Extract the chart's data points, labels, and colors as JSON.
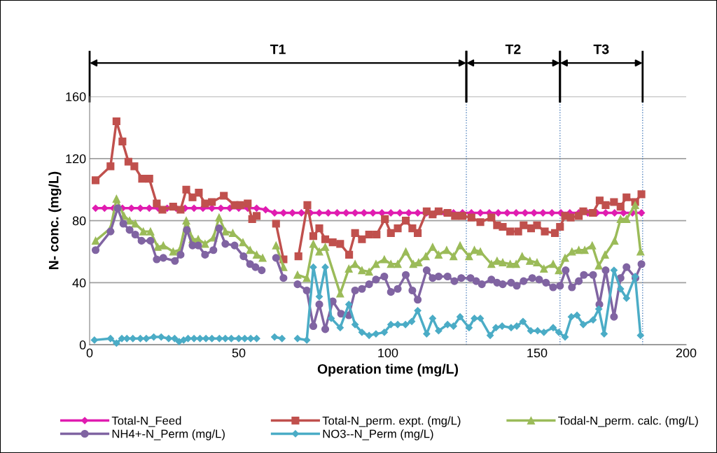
{
  "chart_data": {
    "type": "line",
    "xlabel": "Operation time (mg/L)",
    "ylabel": "N- conc. (mg/L)",
    "xlim": [
      0,
      200
    ],
    "xticks": [
      0,
      50,
      100,
      150,
      200
    ],
    "ylim": [
      0,
      160
    ],
    "yticks": [
      0,
      40,
      80,
      120,
      160
    ],
    "grid": "y",
    "legend": "bottom",
    "line_style": "solid",
    "series": [
      {
        "name": "Total-N_Feed",
        "color": "#e01cb0",
        "marker": "diamond",
        "x": [
          2,
          5,
          8,
          11,
          14,
          17,
          20,
          23,
          26,
          29,
          32,
          35,
          38,
          41,
          44,
          47,
          50,
          53,
          56,
          59,
          62,
          65,
          68,
          71,
          74,
          77,
          80,
          83,
          86,
          89,
          92,
          95,
          98,
          101,
          104,
          107,
          110,
          113,
          116,
          119,
          122,
          125,
          128,
          131,
          134,
          137,
          140,
          143,
          146,
          149,
          152,
          155,
          158,
          161,
          164,
          167,
          170,
          173,
          176,
          179,
          182,
          185
        ],
        "values": [
          88,
          88,
          88,
          88,
          88,
          88,
          88,
          88,
          88,
          88,
          88,
          88,
          88,
          88,
          88,
          88,
          88,
          88,
          88,
          87,
          85,
          85,
          85,
          85,
          85,
          85,
          85,
          85,
          85,
          85,
          85,
          85,
          85,
          85,
          85,
          85,
          85,
          85,
          85,
          85,
          85,
          85,
          85,
          85,
          85,
          85,
          85,
          85,
          85,
          85,
          85,
          85,
          85,
          85,
          85,
          85,
          85,
          85,
          85,
          85,
          85,
          85
        ]
      },
      {
        "name": "Total-N_perm. expt. (mg/L)",
        "color": "#c0504d",
        "marker": "square",
        "x": [
          2,
          7,
          9,
          11,
          13,
          15,
          17.6,
          20,
          22.5,
          24.4,
          28,
          30.5,
          32.4,
          34.5,
          36.6,
          38.7,
          41,
          45,
          48.6,
          50.5,
          53,
          54.5,
          56,
          60,
          62.5,
          65,
          67,
          70,
          73,
          75,
          77,
          79,
          81.5,
          84,
          87,
          89,
          91.3,
          93.7,
          96.2,
          99,
          101,
          103.3,
          106,
          108.2,
          110,
          113,
          115,
          117,
          120,
          122.5,
          125,
          128,
          131,
          134.7,
          136.6,
          138.5,
          141,
          143.7,
          145.5,
          148,
          150,
          152.6,
          156,
          157.7,
          159.4,
          161.3,
          164,
          165.5,
          168.7,
          171,
          173,
          175.8,
          178,
          180,
          182.9,
          185
        ],
        "values": [
          106,
          115,
          144,
          131,
          118,
          115,
          107,
          107,
          91,
          87,
          89,
          87,
          100,
          95,
          98,
          91,
          92,
          96,
          90,
          90,
          91,
          81,
          83,
          null,
          78,
          55,
          null,
          57,
          90,
          70,
          75,
          68,
          66,
          65,
          58,
          72,
          68,
          71,
          71,
          81,
          72,
          75,
          80,
          75,
          72,
          86,
          84,
          86,
          85,
          83,
          83,
          82,
          79,
          82,
          77,
          76,
          73,
          73,
          77,
          75,
          77,
          73,
          72,
          76,
          83,
          82,
          83,
          86,
          85,
          93,
          90,
          92,
          89,
          95,
          92,
          97
        ]
      },
      {
        "name": "Todal-N_perm. calc. (mg/L)",
        "color": "#9bbb59",
        "marker": "triangle",
        "x": [
          2,
          7,
          9,
          11.5,
          13.4,
          15.3,
          18,
          20.4,
          22.8,
          24.7,
          28,
          30.2,
          32.4,
          34.5,
          36.4,
          38.7,
          41.5,
          43.4,
          45.5,
          48,
          51.4,
          53.8,
          56,
          58,
          60,
          62.5,
          65,
          67,
          69.7,
          72.8,
          75,
          77,
          79,
          84,
          86.9,
          89,
          91.3,
          93.7,
          96,
          98.8,
          101,
          103.3,
          106,
          108.5,
          110.3,
          112.7,
          115,
          117,
          119.7,
          122,
          124.2,
          127.2,
          129,
          131,
          134.7,
          136.6,
          138.5,
          141,
          143,
          145,
          147.6,
          150,
          152.3,
          155.4,
          157.3,
          159.4,
          161.7,
          164,
          166,
          168.5,
          170.7,
          172.8,
          176,
          178,
          180,
          182.9,
          184.7
        ],
        "values": [
          67,
          75,
          94,
          83,
          80,
          78,
          73,
          73,
          63,
          64,
          60,
          61,
          80,
          68,
          68,
          65,
          69,
          82,
          73,
          72,
          66,
          61,
          58,
          56,
          null,
          64,
          50,
          null,
          45,
          43,
          65,
          60,
          63,
          33,
          49,
          52,
          48,
          47,
          52,
          55,
          52,
          52,
          60,
          52,
          53,
          57,
          63,
          58,
          61,
          57,
          64,
          57,
          61,
          60,
          52,
          54,
          53,
          52,
          52,
          57,
          54,
          53,
          49,
          52,
          48,
          56,
          60,
          61,
          61,
          64,
          51,
          58,
          67,
          81,
          81,
          90,
          60
        ]
      },
      {
        "name": "NH4+-N_Perm (mg/L)",
        "color": "#8064a2",
        "marker": "circle",
        "x": [
          2,
          7,
          9.4,
          11.3,
          13.4,
          15.3,
          17.4,
          20.4,
          22.5,
          24.7,
          28.6,
          30.5,
          32.6,
          34.5,
          36.4,
          38.7,
          41.5,
          43.4,
          45.5,
          48.6,
          51.6,
          53.8,
          55.6,
          57.7,
          60,
          62.5,
          65,
          67,
          69.7,
          72.8,
          75,
          77,
          79,
          81.5,
          84.3,
          86.9,
          89,
          91.3,
          93.7,
          96,
          98.8,
          101,
          103.3,
          106,
          108.2,
          110,
          113,
          115,
          117,
          120,
          122.3,
          124.6,
          127.7,
          129.6,
          131.5,
          134.7,
          136.6,
          138.5,
          141.3,
          143.2,
          145.5,
          148.4,
          150.7,
          153,
          155.4,
          157.7,
          159.6,
          161.7,
          164,
          165.7,
          168.8,
          170.9,
          173,
          175.8,
          178,
          180,
          183,
          185
        ],
        "values": [
          61,
          73,
          88,
          78,
          74,
          71,
          67,
          67,
          55,
          56,
          54,
          58,
          74,
          64,
          64,
          58,
          61,
          75,
          65,
          64,
          57,
          52,
          50,
          48,
          null,
          56,
          43,
          null,
          39,
          35,
          12,
          26,
          10,
          28,
          20,
          19,
          35,
          36,
          39,
          42,
          44,
          34,
          36,
          45,
          35,
          29,
          48,
          43,
          44,
          44,
          41,
          43,
          43,
          41,
          39,
          42,
          40,
          39,
          40,
          38,
          41,
          43,
          42,
          40,
          37,
          38,
          48,
          37,
          41,
          45,
          45,
          26,
          48,
          18,
          43,
          50,
          43,
          52
        ]
      },
      {
        "name": "NO3--N_Perm (mg/L)",
        "color": "#4bacc6",
        "marker": "diamond",
        "x": [
          1.6,
          7,
          9,
          10.8,
          12.5,
          14.5,
          17,
          19,
          21.5,
          24,
          26.5,
          28.5,
          30,
          31.5,
          33,
          35,
          37,
          39,
          41,
          43.5,
          45.5,
          47.5,
          50,
          52,
          54,
          56,
          60,
          62,
          64.5,
          67,
          69.7,
          72.8,
          75,
          77,
          79,
          81,
          84,
          86.9,
          89,
          91.3,
          93.7,
          96,
          98.8,
          101,
          103.3,
          105.9,
          108,
          110,
          113,
          115,
          117,
          120,
          122,
          124.2,
          127.2,
          129,
          131,
          134.3,
          136.2,
          138.3,
          141.3,
          143.2,
          145.3,
          147.9,
          150.2,
          152.3,
          155.4,
          157.3,
          159.4,
          161.5,
          163.4,
          165.5,
          168.8,
          170.7,
          172.5,
          175.8,
          178,
          180,
          182.9,
          184.7
        ],
        "values": [
          3,
          4,
          1,
          4,
          4,
          4,
          4,
          4,
          5,
          5,
          4,
          4,
          2,
          3,
          4,
          4,
          4,
          4,
          4,
          4,
          4,
          4,
          4,
          4,
          4,
          4,
          null,
          5,
          4,
          null,
          4,
          3,
          50,
          31,
          50,
          17,
          11,
          26,
          13,
          8,
          6,
          7,
          8,
          13,
          13,
          13,
          15,
          22,
          7,
          17,
          9,
          13,
          12,
          18,
          11,
          17,
          17,
          6,
          11,
          12,
          11,
          12,
          15,
          9,
          9,
          8,
          11,
          8,
          5,
          18,
          19,
          13,
          16,
          23,
          7,
          48,
          36,
          30,
          44,
          6
        ]
      }
    ],
    "ref_lines": [
      {
        "axis": "x",
        "value": 126.3,
        "color": "#4f81bd",
        "line_style": "dotted"
      },
      {
        "axis": "x",
        "value": 157.7,
        "color": "#4f81bd",
        "line_style": "dotted"
      },
      {
        "axis": "x",
        "value": 185.4,
        "color": "#4f81bd",
        "line_style": "dotted"
      }
    ],
    "annotations": [
      "T1",
      "T2",
      "T3"
    ]
  }
}
